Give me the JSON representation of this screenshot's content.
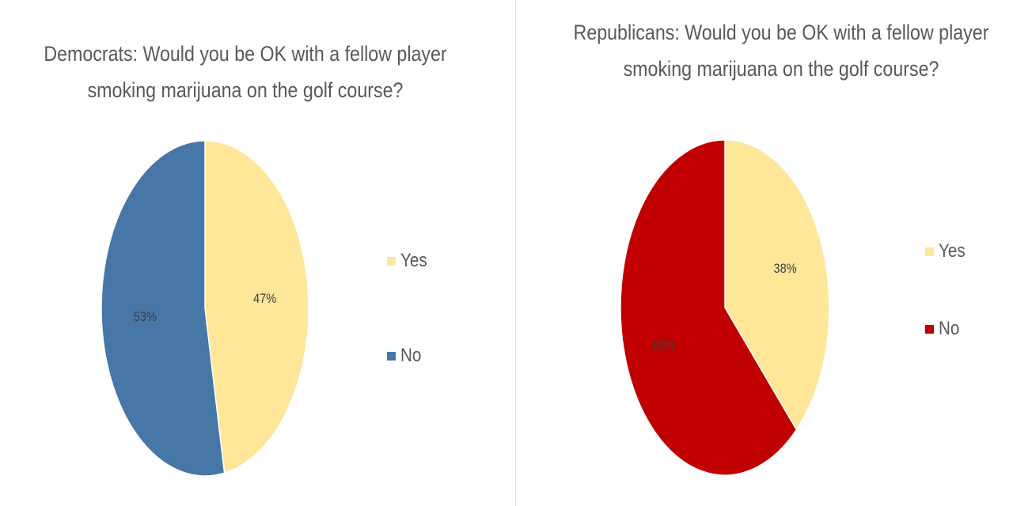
{
  "chart_data": [
    {
      "type": "pie",
      "title": "Democrats: Would you be OK with a fellow player\nsmoking marijuana on the golf course?",
      "categories": [
        "Yes",
        "No"
      ],
      "values": [
        47,
        53
      ],
      "data_labels": [
        "47%",
        "53%"
      ],
      "colors": [
        "#FFE699",
        "#4677A7"
      ],
      "legend": "right"
    },
    {
      "type": "pie",
      "title": "Republicans: Would you be OK with a fellow player\nsmoking marijuana on the golf course?",
      "categories": [
        "Yes",
        "No"
      ],
      "values": [
        38,
        62
      ],
      "data_labels": [
        "38%",
        "62%"
      ],
      "colors": [
        "#FFE699",
        "#C00000"
      ],
      "legend": "right"
    }
  ]
}
